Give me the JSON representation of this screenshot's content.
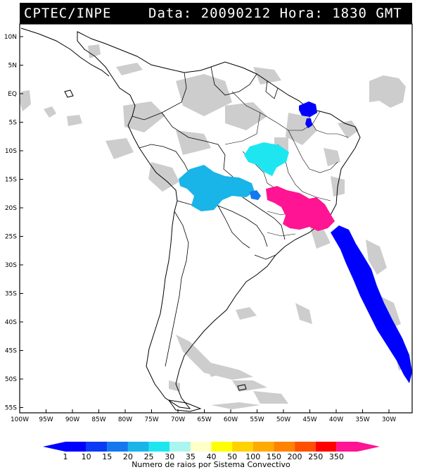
{
  "header": {
    "source": "CPTEC/INPE",
    "datetime": "Data: 20090212 Hora: 1830 GMT"
  },
  "axes": {
    "lat_labels": [
      "10N",
      "5N",
      "EQ",
      "5S",
      "10S",
      "15S",
      "20S",
      "25S",
      "30S",
      "35S",
      "40S",
      "45S",
      "50S",
      "55S"
    ],
    "lon_labels": [
      "100W",
      "95W",
      "90W",
      "85W",
      "80W",
      "75W",
      "70W",
      "65W",
      "60W",
      "55W",
      "50W",
      "45W",
      "40W",
      "35W",
      "30W"
    ]
  },
  "legend": {
    "title": "Numero de raios por Sistema Convectivo",
    "levels": [
      "1",
      "10",
      "15",
      "20",
      "25",
      "30",
      "35",
      "40",
      "50",
      "100",
      "150",
      "200",
      "250",
      "350"
    ],
    "colors": [
      "#0000ff",
      "#0a3cf5",
      "#1478f0",
      "#19b4e8",
      "#1ee6f0",
      "#aaf5f0",
      "#ffffc8",
      "#ffff00",
      "#ffd200",
      "#ffaa00",
      "#ff8200",
      "#ff5000",
      "#ff0000",
      "#ff1493"
    ]
  },
  "map": {
    "land_color": "#ffffff",
    "cloud_color": "#c8c8c8",
    "systems": [
      {
        "name": "system-para-maranhao",
        "color": "#0000ff"
      },
      {
        "name": "system-tocantins",
        "color": "#1ee6f0"
      },
      {
        "name": "system-mato-grosso",
        "color": "#19b4e8"
      },
      {
        "name": "system-mato-grosso-sul",
        "color": "#1478f0"
      },
      {
        "name": "system-southeast-brazil",
        "color": "#ff1493"
      },
      {
        "name": "system-atlantic-front",
        "color": "#0000ff"
      }
    ]
  }
}
